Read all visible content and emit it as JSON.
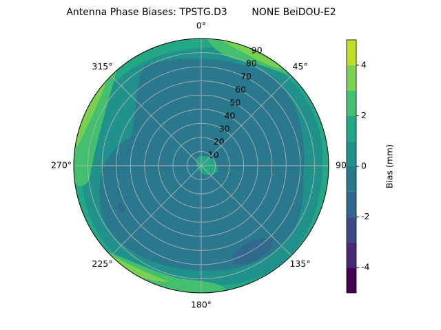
{
  "chart_data": {
    "type": "polar-contour",
    "title": "Antenna Phase Biases: TPSTG.D3        NONE BeiDOU-E2",
    "thetaticks": [
      {
        "value": 0,
        "label": "0°"
      },
      {
        "value": 45,
        "label": "45°"
      },
      {
        "value": 90,
        "label": "90"
      },
      {
        "value": 135,
        "label": "135°"
      },
      {
        "value": 180,
        "label": "180°"
      },
      {
        "value": 225,
        "label": "225°"
      },
      {
        "value": 270,
        "label": "270°"
      },
      {
        "value": 315,
        "label": "315°"
      }
    ],
    "rlim": [
      0,
      90
    ],
    "rticks": [
      10,
      20,
      30,
      40,
      50,
      60,
      70,
      80,
      90
    ],
    "levels": [
      -5,
      -4,
      -3,
      -2,
      -1,
      0,
      1,
      2,
      3,
      4,
      5
    ],
    "colors": [
      "#440154",
      "#482878",
      "#3e4989",
      "#31688e",
      "#2a788e",
      "#21918c",
      "#22a884",
      "#44bf70",
      "#7ad151",
      "#bddf26"
    ],
    "colorbar_label": "Bias (mm)",
    "colorbar_lim": [
      -5,
      5
    ],
    "colorbar_ticks": [
      -4,
      -2,
      0,
      2,
      4
    ],
    "grid": true
  }
}
